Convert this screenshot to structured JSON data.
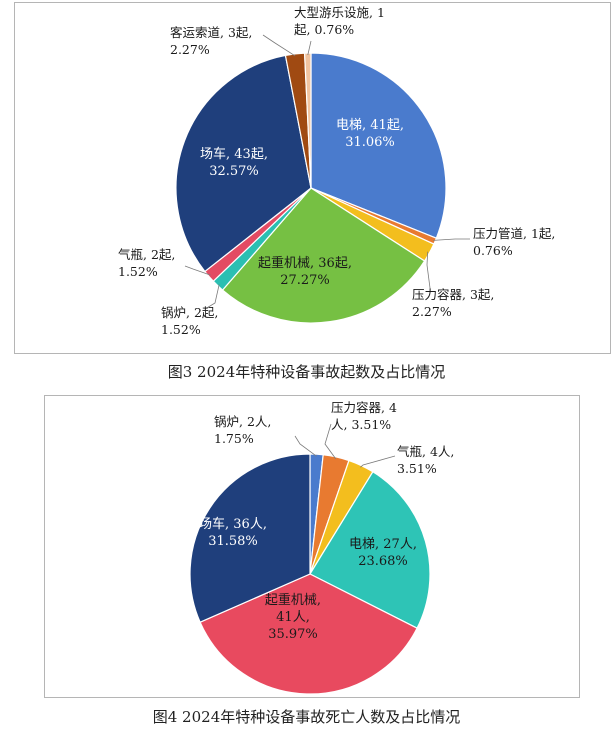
{
  "chart_data": [
    {
      "type": "pie",
      "title": "",
      "caption": "图3  2024年特种设备事故起数及占比情况",
      "slices": [
        {
          "name": "电梯",
          "value": 41,
          "unit": "起",
          "percent": "31.06%",
          "color": "#4a7bcd",
          "label_lines": [
            "电梯, 41起,",
            "31.06%"
          ],
          "inside": true
        },
        {
          "name": "压力管道",
          "value": 1,
          "unit": "起",
          "percent": "0.76%",
          "color": "#e87a30",
          "label_lines": [
            "压力管道, 1起,",
            "0.76%"
          ],
          "inside": false
        },
        {
          "name": "压力容器",
          "value": 3,
          "unit": "起",
          "percent": "2.27%",
          "color": "#f3be1e",
          "label_lines": [
            "压力容器, 3起,",
            "2.27%"
          ],
          "inside": false
        },
        {
          "name": "起重机械",
          "value": 36,
          "unit": "起",
          "percent": "27.27%",
          "color": "#76c043",
          "label_lines": [
            "起重机械, 36起,",
            "27.27%"
          ],
          "inside": true
        },
        {
          "name": "锅炉",
          "value": 2,
          "unit": "起",
          "percent": "1.52%",
          "color": "#2bbfb2",
          "label_lines": [
            "锅炉, 2起,",
            "1.52%"
          ],
          "inside": false
        },
        {
          "name": "气瓶",
          "value": 2,
          "unit": "起",
          "percent": "1.52%",
          "color": "#e34b63",
          "label_lines": [
            "气瓶, 2起,",
            "1.52%"
          ],
          "inside": false
        },
        {
          "name": "场车",
          "value": 43,
          "unit": "起",
          "percent": "32.57%",
          "color": "#1f3f7c",
          "label_lines": [
            "场车, 43起,",
            "32.57%"
          ],
          "inside": true
        },
        {
          "name": "客运索道",
          "value": 3,
          "unit": "起",
          "percent": "2.27%",
          "color": "#a04a12",
          "label_lines": [
            "客运索道, 3起,",
            "2.27%"
          ],
          "inside": false
        },
        {
          "name": "大型游乐设施",
          "value": 1,
          "unit": "起",
          "percent": "0.76%",
          "color": "#f1c4a0",
          "label_lines": [
            "大型游乐设施, 1",
            "起, 0.76%"
          ],
          "inside": false
        }
      ]
    },
    {
      "type": "pie",
      "title": "",
      "caption": "图4  2024年特种设备事故死亡人数及占比情况",
      "slices": [
        {
          "name": "锅炉",
          "value": 2,
          "unit": "人",
          "percent": "1.75%",
          "color": "#4a7bcd",
          "label_lines": [
            "锅炉, 2人,",
            "1.75%"
          ],
          "inside": false
        },
        {
          "name": "压力容器",
          "value": 4,
          "unit": "人",
          "percent": "3.51%",
          "color": "#e87a30",
          "label_lines": [
            "压力容器, 4",
            "人, 3.51%"
          ],
          "inside": false
        },
        {
          "name": "气瓶",
          "value": 4,
          "unit": "人",
          "percent": "3.51%",
          "color": "#f3be1e",
          "label_lines": [
            "气瓶, 4人,",
            "3.51%"
          ],
          "inside": false
        },
        {
          "name": "电梯",
          "value": 27,
          "unit": "人",
          "percent": "23.68%",
          "color": "#2ec4b6",
          "label_lines": [
            "电梯, 27人,",
            "23.68%"
          ],
          "inside": true
        },
        {
          "name": "起重机械",
          "value": 41,
          "unit": "人",
          "percent": "35.97%",
          "color": "#e84a5f",
          "label_lines": [
            "起重机械,",
            "41人,",
            "35.97%"
          ],
          "inside": true
        },
        {
          "name": "场车",
          "value": 36,
          "unit": "人",
          "percent": "31.58%",
          "color": "#1f3f7c",
          "label_lines": [
            "场车, 36人,",
            "31.58%"
          ],
          "inside": true
        }
      ]
    }
  ]
}
